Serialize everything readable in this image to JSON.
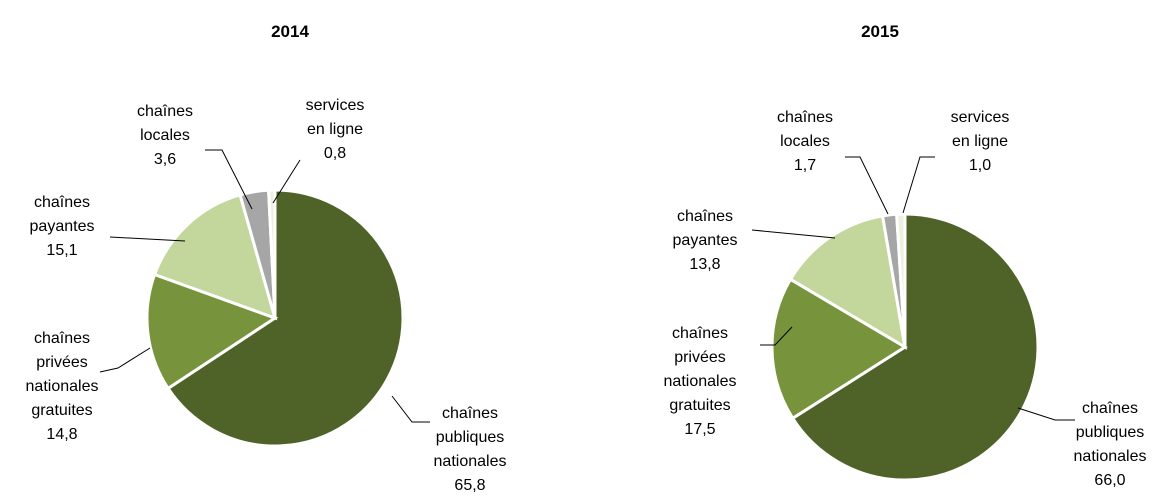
{
  "chart_data": [
    {
      "type": "pie",
      "title": "2014",
      "categories": [
        [
          "chaînes",
          "publiques",
          "nationales"
        ],
        [
          "chaînes",
          "privées",
          "nationales",
          "gratuites"
        ],
        [
          "chaînes",
          "payantes"
        ],
        [
          "chaînes",
          "locales"
        ],
        [
          "services",
          "en ligne"
        ]
      ],
      "values": [
        65.8,
        14.8,
        15.1,
        3.6,
        0.8
      ],
      "value_labels": [
        "65,8",
        "14,8",
        "15,1",
        "3,6",
        "0,8"
      ],
      "colors": [
        "#4f6228",
        "#77933c",
        "#c3d69b",
        "#a6a6a6",
        "#ebf1de"
      ]
    },
    {
      "type": "pie",
      "title": "2015",
      "categories": [
        [
          "chaînes",
          "publiques",
          "nationales"
        ],
        [
          "chaînes",
          "privées",
          "nationales",
          "gratuites"
        ],
        [
          "chaînes",
          "payantes"
        ],
        [
          "chaînes",
          "locales"
        ],
        [
          "services",
          "en ligne"
        ]
      ],
      "values": [
        66.0,
        17.5,
        13.8,
        1.7,
        1.0
      ],
      "value_labels": [
        "66,0",
        "17,5",
        "13,8",
        "1,7",
        "1,0"
      ],
      "colors": [
        "#4f6228",
        "#77933c",
        "#c3d69b",
        "#a6a6a6",
        "#ebf1de"
      ]
    }
  ]
}
